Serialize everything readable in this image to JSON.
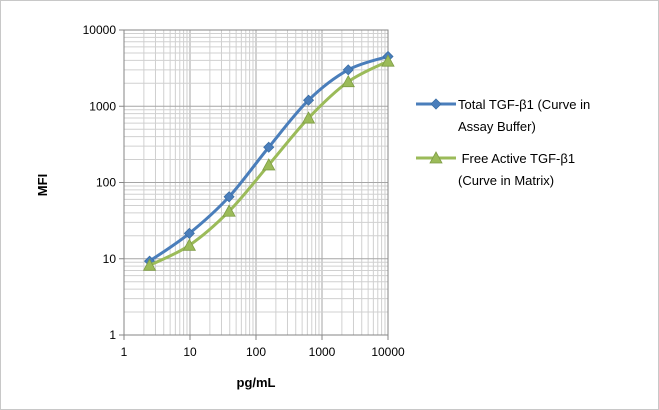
{
  "chart_data": {
    "type": "line",
    "x_scale": "log",
    "y_scale": "log",
    "xlim": [
      1,
      10000
    ],
    "ylim": [
      1,
      10000
    ],
    "x_ticks": [
      1,
      10,
      100,
      1000,
      10000
    ],
    "x_tick_labels": [
      "1",
      "10",
      "100",
      "1000",
      "10000"
    ],
    "y_ticks": [
      1,
      10,
      100,
      1000,
      10000
    ],
    "y_tick_labels": [
      "1",
      "10",
      "100",
      "1000",
      "10000"
    ],
    "xlabel": "pg/mL",
    "ylabel": "MFI",
    "grid": true,
    "legend_position": "right",
    "series": [
      {
        "name_lines": [
          "Total TGF-β1 (Curve in",
          "Assay Buffer)"
        ],
        "color": "#4a7ebb",
        "marker": "diamond",
        "x": [
          2.44,
          9.77,
          39.1,
          156,
          625,
          2500,
          10000
        ],
        "y": [
          9.3,
          21.5,
          65,
          290,
          1200,
          3000,
          4500
        ]
      },
      {
        "name_lines": [
          " Free Active TGF-β1",
          "(Curve in Matrix)"
        ],
        "color": "#9bbb59",
        "marker": "triangle",
        "x": [
          2.44,
          9.77,
          39.1,
          156,
          625,
          2500,
          10000
        ],
        "y": [
          8.2,
          15,
          42,
          170,
          700,
          2100,
          3900
        ]
      }
    ]
  }
}
